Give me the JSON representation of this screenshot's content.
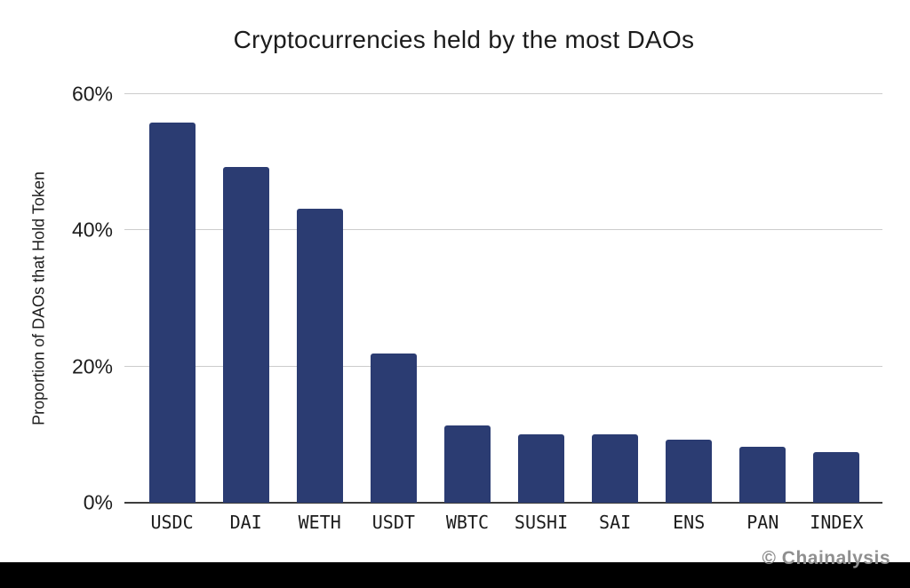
{
  "chart_data": {
    "type": "bar",
    "title": "Cryptocurrencies held by the most DAOs",
    "categories": [
      "USDC",
      "DAI",
      "WETH",
      "USDT",
      "WBTC",
      "SUSHI",
      "SAI",
      "ENS",
      "PAN",
      "INDEX"
    ],
    "values": [
      55.8,
      49.3,
      43.2,
      21.9,
      11.3,
      10.0,
      10.0,
      9.3,
      8.2,
      7.4
    ],
    "xlabel": "",
    "ylabel": "Proportion of DAOs that Hold Token",
    "ylim": [
      0,
      60
    ],
    "yticks": [
      {
        "value": 0,
        "label": "0%"
      },
      {
        "value": 20,
        "label": "20%"
      },
      {
        "value": 40,
        "label": "40%"
      },
      {
        "value": 60,
        "label": "60%"
      }
    ],
    "grid": true,
    "legend": false,
    "watermark": "© Chainalysis",
    "colors": {
      "bar": "#2b3c72",
      "gridline": "#cccccc",
      "axis_line": "#3d3d3d",
      "text": "#1c1c1c",
      "watermark": "#8f8f8f",
      "bottom_strip": "#000000",
      "background": "#ffffff"
    }
  }
}
